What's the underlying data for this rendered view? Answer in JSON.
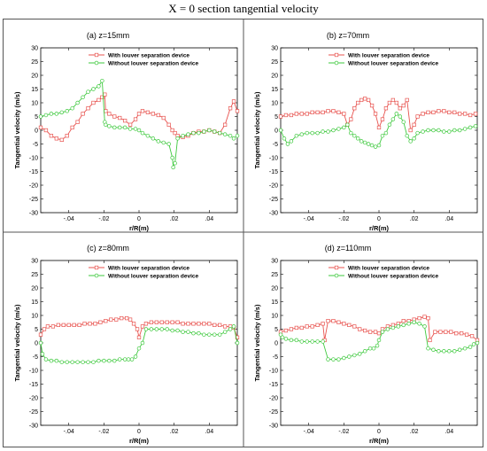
{
  "figure_title": "X = 0 section tangential velocity",
  "legend": {
    "with_label": "With louver separation device",
    "without_label": "Without louver separation device"
  },
  "colors": {
    "with": "#e8534f",
    "without": "#3ec93e",
    "axis": "#000000",
    "frame": "#555555"
  },
  "chart_data": [
    {
      "type": "line",
      "title": "(a) z=15mm",
      "xlabel": "r/R(m)",
      "ylabel": "Tangential velocity (m/s)",
      "xlim": [
        -0.056,
        0.056
      ],
      "ylim": [
        -30,
        30
      ],
      "xticks": [
        -0.04,
        -0.02,
        0,
        0.02,
        0.04
      ],
      "yticks": [
        -30,
        -25,
        -20,
        -15,
        -10,
        -5,
        0,
        5,
        10,
        15,
        20,
        25,
        30
      ],
      "grid": false,
      "legend_position": "top-right",
      "series": [
        {
          "name": "With louver separation device",
          "x": [
            -0.056,
            -0.053,
            -0.05,
            -0.047,
            -0.044,
            -0.041,
            -0.038,
            -0.035,
            -0.032,
            -0.029,
            -0.026,
            -0.023,
            -0.021,
            -0.0195,
            -0.019,
            -0.017,
            -0.014,
            -0.011,
            -0.008,
            -0.005,
            -0.002,
            0.0,
            0.002,
            0.005,
            0.008,
            0.011,
            0.014,
            0.017,
            0.019,
            0.0205,
            0.022,
            0.025,
            0.028,
            0.031,
            0.034,
            0.037,
            0.04,
            0.043,
            0.046,
            0.049,
            0.052,
            0.054,
            0.056
          ],
          "y": [
            1,
            0,
            -2,
            -3,
            -3.5,
            -2,
            1,
            3,
            6,
            8,
            10,
            11,
            12,
            13,
            7,
            6,
            5,
            4.5,
            3.5,
            2,
            4,
            6,
            7,
            6.5,
            6,
            5.5,
            4.5,
            2,
            0,
            -1,
            -2,
            -2.5,
            -2,
            -1,
            -0.5,
            -0.5,
            0,
            -0.5,
            -1,
            2,
            8,
            10.5,
            7
          ]
        },
        {
          "name": "Without louver separation device",
          "x": [
            -0.056,
            -0.053,
            -0.05,
            -0.047,
            -0.044,
            -0.041,
            -0.038,
            -0.035,
            -0.032,
            -0.029,
            -0.026,
            -0.023,
            -0.021,
            -0.0195,
            -0.019,
            -0.017,
            -0.014,
            -0.011,
            -0.008,
            -0.005,
            -0.002,
            0.0,
            0.002,
            0.005,
            0.008,
            0.011,
            0.014,
            0.017,
            0.019,
            0.0195,
            0.0205,
            0.022,
            0.025,
            0.028,
            0.031,
            0.034,
            0.037,
            0.04,
            0.043,
            0.046,
            0.049,
            0.052,
            0.054,
            0.056
          ],
          "y": [
            5,
            5.5,
            6,
            6,
            6.5,
            7,
            8,
            10,
            12,
            14,
            15,
            16,
            18,
            3,
            2,
            1.5,
            1,
            1,
            1,
            0.5,
            0.5,
            0,
            -1,
            -2,
            -3,
            -4,
            -4.5,
            -5,
            -10,
            -13.5,
            -12,
            -3,
            -2,
            -1.5,
            -1,
            -1,
            -0.5,
            0,
            -0.5,
            -1,
            -1.5,
            -2,
            -3,
            -2
          ]
        }
      ]
    },
    {
      "type": "line",
      "title": "(b) z=70mm",
      "xlabel": "r/R(m)",
      "ylabel": "Tangential velocity (m/s)",
      "xlim": [
        -0.056,
        0.056
      ],
      "ylim": [
        -30,
        30
      ],
      "xticks": [
        -0.04,
        -0.02,
        0,
        0.02,
        0.04
      ],
      "yticks": [
        -30,
        -25,
        -20,
        -15,
        -10,
        -5,
        0,
        5,
        10,
        15,
        20,
        25,
        30
      ],
      "grid": false,
      "legend_position": "top-right",
      "series": [
        {
          "name": "With louver separation device",
          "x": [
            -0.056,
            -0.053,
            -0.05,
            -0.047,
            -0.044,
            -0.041,
            -0.038,
            -0.035,
            -0.032,
            -0.029,
            -0.026,
            -0.023,
            -0.02,
            -0.018,
            -0.016,
            -0.014,
            -0.012,
            -0.01,
            -0.008,
            -0.006,
            -0.004,
            -0.002,
            0.0,
            0.002,
            0.004,
            0.006,
            0.008,
            0.01,
            0.012,
            0.014,
            0.016,
            0.018,
            0.02,
            0.022,
            0.025,
            0.028,
            0.031,
            0.034,
            0.037,
            0.04,
            0.043,
            0.046,
            0.049,
            0.052,
            0.055
          ],
          "y": [
            5,
            5.5,
            5.5,
            6,
            6,
            6,
            6.5,
            6.5,
            6.5,
            7,
            7,
            6.5,
            6,
            2,
            4,
            8,
            10,
            11,
            11.5,
            11,
            9,
            6,
            1,
            4,
            8,
            10,
            11,
            10,
            8,
            9,
            11,
            0,
            2,
            5,
            6,
            6.5,
            6.5,
            7,
            7,
            6.5,
            6.5,
            6,
            6,
            5.5,
            6
          ]
        },
        {
          "name": "Without louver separation device",
          "x": [
            -0.056,
            -0.054,
            -0.052,
            -0.05,
            -0.047,
            -0.044,
            -0.041,
            -0.038,
            -0.035,
            -0.032,
            -0.029,
            -0.026,
            -0.023,
            -0.02,
            -0.018,
            -0.016,
            -0.014,
            -0.012,
            -0.01,
            -0.008,
            -0.006,
            -0.004,
            -0.002,
            0.0,
            0.002,
            0.004,
            0.006,
            0.008,
            0.01,
            0.012,
            0.014,
            0.016,
            0.018,
            0.02,
            0.022,
            0.025,
            0.028,
            0.031,
            0.034,
            0.037,
            0.04,
            0.043,
            0.046,
            0.049,
            0.052,
            0.055
          ],
          "y": [
            0,
            -3,
            -5,
            -4,
            -2,
            -1.5,
            -1,
            -1,
            -1,
            -0.5,
            -0.5,
            0,
            0.5,
            1,
            2,
            -1,
            -2,
            -3,
            -4,
            -4.5,
            -5,
            -5.5,
            -6,
            -5.5,
            -2,
            -1,
            2,
            4,
            6,
            5,
            3,
            -2,
            -4,
            -3,
            -1,
            -0.5,
            0,
            0,
            0,
            -0.5,
            -0.5,
            0,
            0,
            0.5,
            1,
            1.5
          ]
        }
      ]
    },
    {
      "type": "line",
      "title": "(c) z=80mm",
      "xlabel": "r/R(m)",
      "ylabel": "Tangential velocity (m/s)",
      "xlim": [
        -0.056,
        0.056
      ],
      "ylim": [
        -30,
        30
      ],
      "xticks": [
        -0.04,
        -0.02,
        0,
        0.02,
        0.04
      ],
      "yticks": [
        -30,
        -25,
        -20,
        -15,
        -10,
        -5,
        0,
        5,
        10,
        15,
        20,
        25,
        30
      ],
      "grid": false,
      "legend_position": "top-right",
      "series": [
        {
          "name": "With louver separation device",
          "x": [
            -0.056,
            -0.054,
            -0.052,
            -0.049,
            -0.046,
            -0.043,
            -0.04,
            -0.037,
            -0.034,
            -0.031,
            -0.028,
            -0.025,
            -0.022,
            -0.019,
            -0.016,
            -0.013,
            -0.01,
            -0.007,
            -0.005,
            -0.003,
            -0.001,
            0.0,
            0.002,
            0.004,
            0.007,
            0.01,
            0.013,
            0.016,
            0.019,
            0.022,
            0.025,
            0.028,
            0.031,
            0.034,
            0.037,
            0.04,
            0.043,
            0.046,
            0.049,
            0.052,
            0.054,
            0.056
          ],
          "y": [
            3,
            5,
            6,
            6,
            6.5,
            6.5,
            6.5,
            6.5,
            6.5,
            7,
            7,
            7,
            7.5,
            8,
            8.5,
            8.5,
            9,
            9,
            8.5,
            7,
            5,
            2,
            6,
            7,
            7.5,
            7.5,
            7.5,
            7.5,
            7.5,
            7.5,
            7,
            7,
            7,
            7,
            7,
            7,
            6.5,
            6.5,
            6,
            6,
            5.5,
            2
          ]
        },
        {
          "name": "Without louver separation device",
          "x": [
            -0.056,
            -0.055,
            -0.053,
            -0.05,
            -0.047,
            -0.044,
            -0.041,
            -0.038,
            -0.035,
            -0.032,
            -0.029,
            -0.026,
            -0.023,
            -0.02,
            -0.017,
            -0.014,
            -0.011,
            -0.008,
            -0.006,
            -0.004,
            -0.002,
            0.0,
            0.002,
            0.004,
            0.007,
            0.01,
            0.013,
            0.016,
            0.019,
            0.022,
            0.025,
            0.028,
            0.031,
            0.034,
            0.037,
            0.04,
            0.043,
            0.046,
            0.049,
            0.052,
            0.054,
            0.056
          ],
          "y": [
            0,
            -4,
            -6,
            -6.5,
            -6.5,
            -7,
            -7,
            -7,
            -7,
            -7,
            -7,
            -7,
            -6.5,
            -6.5,
            -6.5,
            -6.5,
            -6,
            -6,
            -6,
            -6,
            -5,
            -2,
            0,
            5,
            5,
            5,
            5,
            5,
            4.5,
            4.5,
            4,
            4,
            3.5,
            3.5,
            3,
            3,
            3,
            3,
            4,
            5,
            6,
            0
          ]
        }
      ]
    },
    {
      "type": "line",
      "title": "(d) z=110mm",
      "xlabel": "r/R(m)",
      "ylabel": "Tangential velocity (m/s)",
      "xlim": [
        -0.056,
        0.056
      ],
      "ylim": [
        -30,
        30
      ],
      "xticks": [
        -0.04,
        -0.02,
        0,
        0.02,
        0.04
      ],
      "yticks": [
        -30,
        -25,
        -20,
        -15,
        -10,
        -5,
        0,
        5,
        10,
        15,
        20,
        25,
        30
      ],
      "grid": false,
      "legend_position": "top-right",
      "series": [
        {
          "name": "With louver separation device",
          "x": [
            -0.056,
            -0.053,
            -0.05,
            -0.047,
            -0.044,
            -0.041,
            -0.038,
            -0.035,
            -0.032,
            -0.031,
            -0.029,
            -0.026,
            -0.023,
            -0.02,
            -0.017,
            -0.014,
            -0.011,
            -0.008,
            -0.005,
            -0.002,
            0.0,
            0.002,
            0.005,
            0.008,
            0.011,
            0.014,
            0.017,
            0.02,
            0.023,
            0.026,
            0.028,
            0.029,
            0.032,
            0.035,
            0.038,
            0.041,
            0.044,
            0.047,
            0.05,
            0.053,
            0.056
          ],
          "y": [
            4,
            4.5,
            5,
            5.5,
            5.5,
            6,
            6,
            6.5,
            7,
            1,
            8,
            8,
            7.5,
            7,
            6.5,
            6,
            5,
            4.5,
            4,
            4,
            3.5,
            5,
            6,
            6.5,
            7,
            8,
            8,
            8.5,
            9,
            9.5,
            9,
            1,
            4,
            4,
            4,
            4,
            3.5,
            3.5,
            3,
            2.5,
            1
          ]
        },
        {
          "name": "Without louver separation device",
          "x": [
            -0.056,
            -0.055,
            -0.053,
            -0.05,
            -0.047,
            -0.044,
            -0.041,
            -0.038,
            -0.035,
            -0.032,
            -0.029,
            -0.026,
            -0.023,
            -0.02,
            -0.017,
            -0.014,
            -0.011,
            -0.008,
            -0.005,
            -0.003,
            -0.001,
            0.0,
            0.002,
            0.005,
            0.008,
            0.011,
            0.014,
            0.017,
            0.02,
            0.023,
            0.026,
            0.028,
            0.031,
            0.034,
            0.037,
            0.04,
            0.043,
            0.046,
            0.049,
            0.052,
            0.054,
            0.056
          ],
          "y": [
            3,
            2,
            1.5,
            1,
            1,
            0.5,
            0.5,
            0.5,
            0.5,
            0.5,
            -6,
            -6,
            -6,
            -5.5,
            -5,
            -4.5,
            -4,
            -3,
            -2,
            -2,
            -1,
            1,
            4,
            5,
            5.5,
            6,
            6.5,
            7,
            7.5,
            7,
            6,
            -2,
            -2.5,
            -3,
            -3,
            -3,
            -3,
            -2.5,
            -2,
            -1.5,
            -0.5,
            0
          ]
        }
      ]
    }
  ]
}
